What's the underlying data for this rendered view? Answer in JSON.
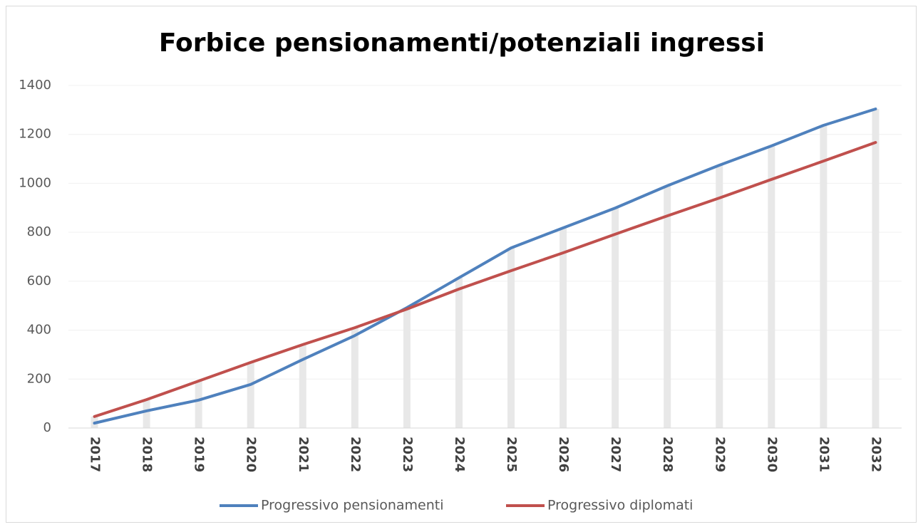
{
  "chart_data": {
    "type": "line",
    "title": "Forbice pensionamenti/potenziali ingressi",
    "categories": [
      "2017",
      "2018",
      "2019",
      "2020",
      "2021",
      "2022",
      "2023",
      "2024",
      "2025",
      "2026",
      "2027",
      "2028",
      "2029",
      "2030",
      "2031",
      "2032"
    ],
    "series": [
      {
        "name": "Progressivo pensionamenti",
        "color": "#4f81bd",
        "values": [
          20,
          70,
          114,
          178,
          280,
          378,
          492,
          614,
          736,
          818,
          899,
          990,
          1074,
          1153,
          1237,
          1304
        ]
      },
      {
        "name": "Progressivo diplomati",
        "color": "#c0504d",
        "values": [
          47,
          116,
          192,
          268,
          341,
          410,
          486,
          568,
          643,
          716,
          792,
          867,
          940,
          1016,
          1091,
          1167
        ]
      }
    ],
    "ylim": [
      0,
      1400
    ],
    "yticks": [
      0,
      200,
      400,
      600,
      800,
      1000,
      1200,
      1400
    ],
    "grid": true,
    "legend": "bottom"
  }
}
